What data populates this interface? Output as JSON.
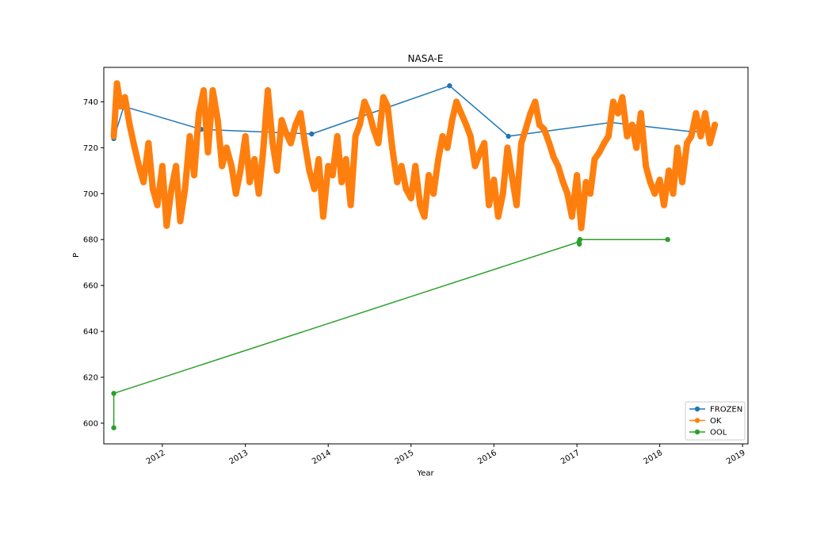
{
  "chart_data": {
    "type": "line",
    "title": "NASA-E",
    "xlabel": "Year",
    "ylabel": "P",
    "x_scale": "date",
    "xlim": [
      "2011-04-18",
      "2019-01-25"
    ],
    "ylim": [
      591,
      755
    ],
    "x_ticks": [
      {
        "label": "2012",
        "date": "2012-01-01"
      },
      {
        "label": "2013",
        "date": "2013-01-01"
      },
      {
        "label": "2014",
        "date": "2014-01-01"
      },
      {
        "label": "2015",
        "date": "2015-01-01"
      },
      {
        "label": "2016",
        "date": "2016-01-01"
      },
      {
        "label": "2017",
        "date": "2017-01-01"
      },
      {
        "label": "2018",
        "date": "2018-01-01"
      },
      {
        "label": "2019",
        "date": "2019-01-01"
      }
    ],
    "y_ticks": [
      600,
      620,
      640,
      660,
      680,
      700,
      720,
      740
    ],
    "grid": false,
    "legend_position": "lower-right",
    "series": [
      {
        "name": "FROZEN",
        "color": "#1f77b4",
        "marker": "circle",
        "x": [
          "2011-06-01",
          "2011-07-15",
          "2012-06-20",
          "2013-10-20",
          "2015-06-20",
          "2016-03-05",
          "2017-06-01",
          "2018-05-20",
          "2018-08-25"
        ],
        "y": [
          724,
          738,
          728,
          726,
          747,
          725,
          731,
          727,
          727
        ]
      },
      {
        "name": "OK",
        "color": "#ff7f0e",
        "marker": "circle",
        "x": [
          "2011-06-01",
          "2011-06-15",
          "2011-07-01",
          "2011-07-20",
          "2011-08-10",
          "2011-09-01",
          "2011-09-20",
          "2011-10-10",
          "2011-11-01",
          "2011-11-20",
          "2011-12-10",
          "2012-01-01",
          "2012-01-20",
          "2012-02-10",
          "2012-03-01",
          "2012-03-20",
          "2012-04-10",
          "2012-05-01",
          "2012-05-20",
          "2012-06-10",
          "2012-07-01",
          "2012-07-20",
          "2012-08-10",
          "2012-09-01",
          "2012-09-20",
          "2012-10-10",
          "2012-11-01",
          "2012-11-20",
          "2012-12-10",
          "2013-01-01",
          "2013-01-20",
          "2013-02-10",
          "2013-03-01",
          "2013-03-20",
          "2013-04-10",
          "2013-05-01",
          "2013-05-20",
          "2013-06-10",
          "2013-07-01",
          "2013-07-20",
          "2013-08-10",
          "2013-09-01",
          "2013-09-20",
          "2013-10-10",
          "2013-11-01",
          "2013-11-20",
          "2013-12-10",
          "2014-01-01",
          "2014-01-20",
          "2014-02-10",
          "2014-03-01",
          "2014-03-20",
          "2014-04-10",
          "2014-05-01",
          "2014-05-20",
          "2014-06-10",
          "2014-07-01",
          "2014-07-20",
          "2014-08-10",
          "2014-09-01",
          "2014-09-20",
          "2014-10-10",
          "2014-11-01",
          "2014-11-20",
          "2014-12-10",
          "2015-01-01",
          "2015-01-20",
          "2015-02-10",
          "2015-03-01",
          "2015-03-20",
          "2015-04-10",
          "2015-05-01",
          "2015-05-20",
          "2015-06-10",
          "2015-07-01",
          "2015-07-20",
          "2015-08-10",
          "2015-09-01",
          "2015-09-20",
          "2015-10-10",
          "2015-11-01",
          "2015-11-20",
          "2015-12-10",
          "2016-01-01",
          "2016-01-20",
          "2016-02-10",
          "2016-03-01",
          "2016-03-20",
          "2016-04-10",
          "2016-05-01",
          "2016-05-20",
          "2016-06-10",
          "2016-07-01",
          "2016-07-20",
          "2016-08-10",
          "2016-09-01",
          "2016-09-20",
          "2016-10-10",
          "2016-11-01",
          "2016-11-20",
          "2016-12-10",
          "2017-01-01",
          "2017-01-20",
          "2017-02-10",
          "2017-03-01",
          "2017-03-20",
          "2017-04-10",
          "2017-05-01",
          "2017-05-20",
          "2017-06-10",
          "2017-07-01",
          "2017-07-20",
          "2017-08-10",
          "2017-09-01",
          "2017-09-20",
          "2017-10-10",
          "2017-11-01",
          "2017-11-20",
          "2017-12-10",
          "2018-01-01",
          "2018-01-20",
          "2018-02-10",
          "2018-03-01",
          "2018-03-20",
          "2018-04-10",
          "2018-05-01",
          "2018-05-20",
          "2018-06-10",
          "2018-07-01",
          "2018-07-20",
          "2018-08-10",
          "2018-09-01"
        ],
        "y": [
          725,
          748,
          738,
          742,
          730,
          720,
          712,
          705,
          722,
          702,
          695,
          712,
          686,
          702,
          712,
          688,
          702,
          725,
          708,
          735,
          745,
          718,
          745,
          732,
          712,
          720,
          712,
          700,
          710,
          725,
          705,
          715,
          700,
          718,
          745,
          722,
          710,
          732,
          726,
          722,
          730,
          735,
          722,
          710,
          702,
          715,
          690,
          712,
          708,
          725,
          705,
          715,
          695,
          725,
          730,
          740,
          735,
          728,
          722,
          742,
          738,
          720,
          705,
          712,
          702,
          698,
          712,
          695,
          690,
          708,
          700,
          715,
          725,
          720,
          732,
          740,
          735,
          730,
          725,
          712,
          718,
          722,
          695,
          706,
          690,
          700,
          720,
          708,
          695,
          722,
          728,
          735,
          740,
          730,
          728,
          722,
          716,
          712,
          705,
          700,
          690,
          708,
          685,
          705,
          700,
          715,
          718,
          722,
          725,
          740,
          735,
          742,
          725,
          730,
          720,
          735,
          712,
          705,
          700,
          706,
          695,
          710,
          700,
          720,
          705,
          722,
          725,
          735,
          725,
          735,
          722,
          730
        ]
      },
      {
        "name": "OOL",
        "color": "#2ca02c",
        "marker": "circle",
        "x": [
          "2011-06-01",
          "2011-06-01",
          "2017-01-10",
          "2017-01-12",
          "2017-01-14",
          "2018-02-05"
        ],
        "y": [
          598,
          613,
          679,
          678,
          680,
          680
        ]
      }
    ]
  }
}
